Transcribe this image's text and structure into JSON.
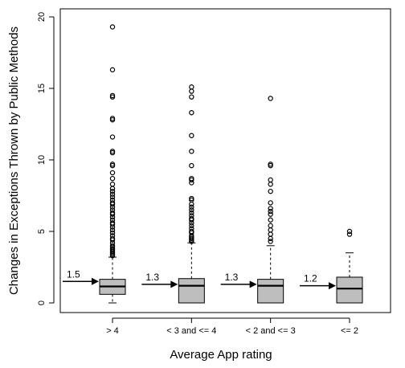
{
  "chart_data": {
    "type": "boxplot",
    "xlabel": "Average App rating",
    "ylabel": "Changes in Exceptions Thrown by Public Methods",
    "ylim": [
      0,
      20
    ],
    "yticks": [
      "0",
      "5",
      "10",
      "15",
      "20"
    ],
    "categories": [
      "> 4",
      "< 3 and <= 4",
      "< 2 and <= 3",
      "<= 2"
    ],
    "grid": false,
    "box_color": "#bebebe",
    "boxes": [
      {
        "category": "> 4",
        "whisker_low": 0,
        "q1": 0.6,
        "median": 1.15,
        "q3": 1.65,
        "whisker_high": 3.2,
        "mean_label": "1.5",
        "mean": 1.5,
        "outliers": [
          19.3,
          16.3,
          14.5,
          14.4,
          12.9,
          12.8,
          11.6,
          10.6,
          10.5,
          9.7,
          9.6,
          9.1,
          8.7,
          8.3,
          8.0,
          7.8,
          7.6,
          7.4,
          7.2,
          7.0,
          6.9,
          6.7,
          6.5,
          6.3,
          6.2,
          6.0,
          5.8,
          5.6,
          5.5,
          5.3,
          5.1,
          4.9,
          4.7,
          4.5,
          4.4,
          4.2,
          4.0,
          3.9,
          3.8,
          3.7,
          3.6,
          3.5,
          3.4,
          3.3
        ]
      },
      {
        "category": "< 3 and <= 4",
        "whisker_low": 0,
        "q1": 0,
        "median": 1.2,
        "q3": 1.7,
        "whisker_high": 4.2,
        "mean_label": "1.3",
        "mean": 1.3,
        "outliers": [
          15.1,
          14.8,
          14.4,
          13.3,
          11.7,
          10.6,
          9.6,
          8.7,
          8.6,
          8.4,
          7.3,
          7.2,
          6.9,
          6.7,
          6.5,
          6.3,
          6.1,
          5.9,
          5.8,
          5.6,
          5.4,
          5.2,
          5.0,
          4.9,
          4.7,
          4.6,
          4.5,
          4.4,
          4.3
        ]
      },
      {
        "category": "< 2 and <= 3",
        "whisker_low": 0,
        "q1": 0,
        "median": 1.2,
        "q3": 1.65,
        "whisker_high": 4.0,
        "mean_label": "1.3",
        "mean": 1.3,
        "outliers": [
          14.3,
          9.7,
          9.6,
          8.6,
          8.3,
          7.8,
          7.0,
          6.6,
          6.4,
          6.2,
          5.8,
          5.4,
          5.1,
          4.8,
          4.5,
          4.3
        ]
      },
      {
        "category": "<= 2",
        "whisker_low": 0,
        "q1": 0,
        "median": 1.0,
        "q3": 1.8,
        "whisker_high": 3.5,
        "mean_label": "1.2",
        "mean": 1.2,
        "outliers": [
          5.0,
          4.8
        ]
      }
    ]
  }
}
